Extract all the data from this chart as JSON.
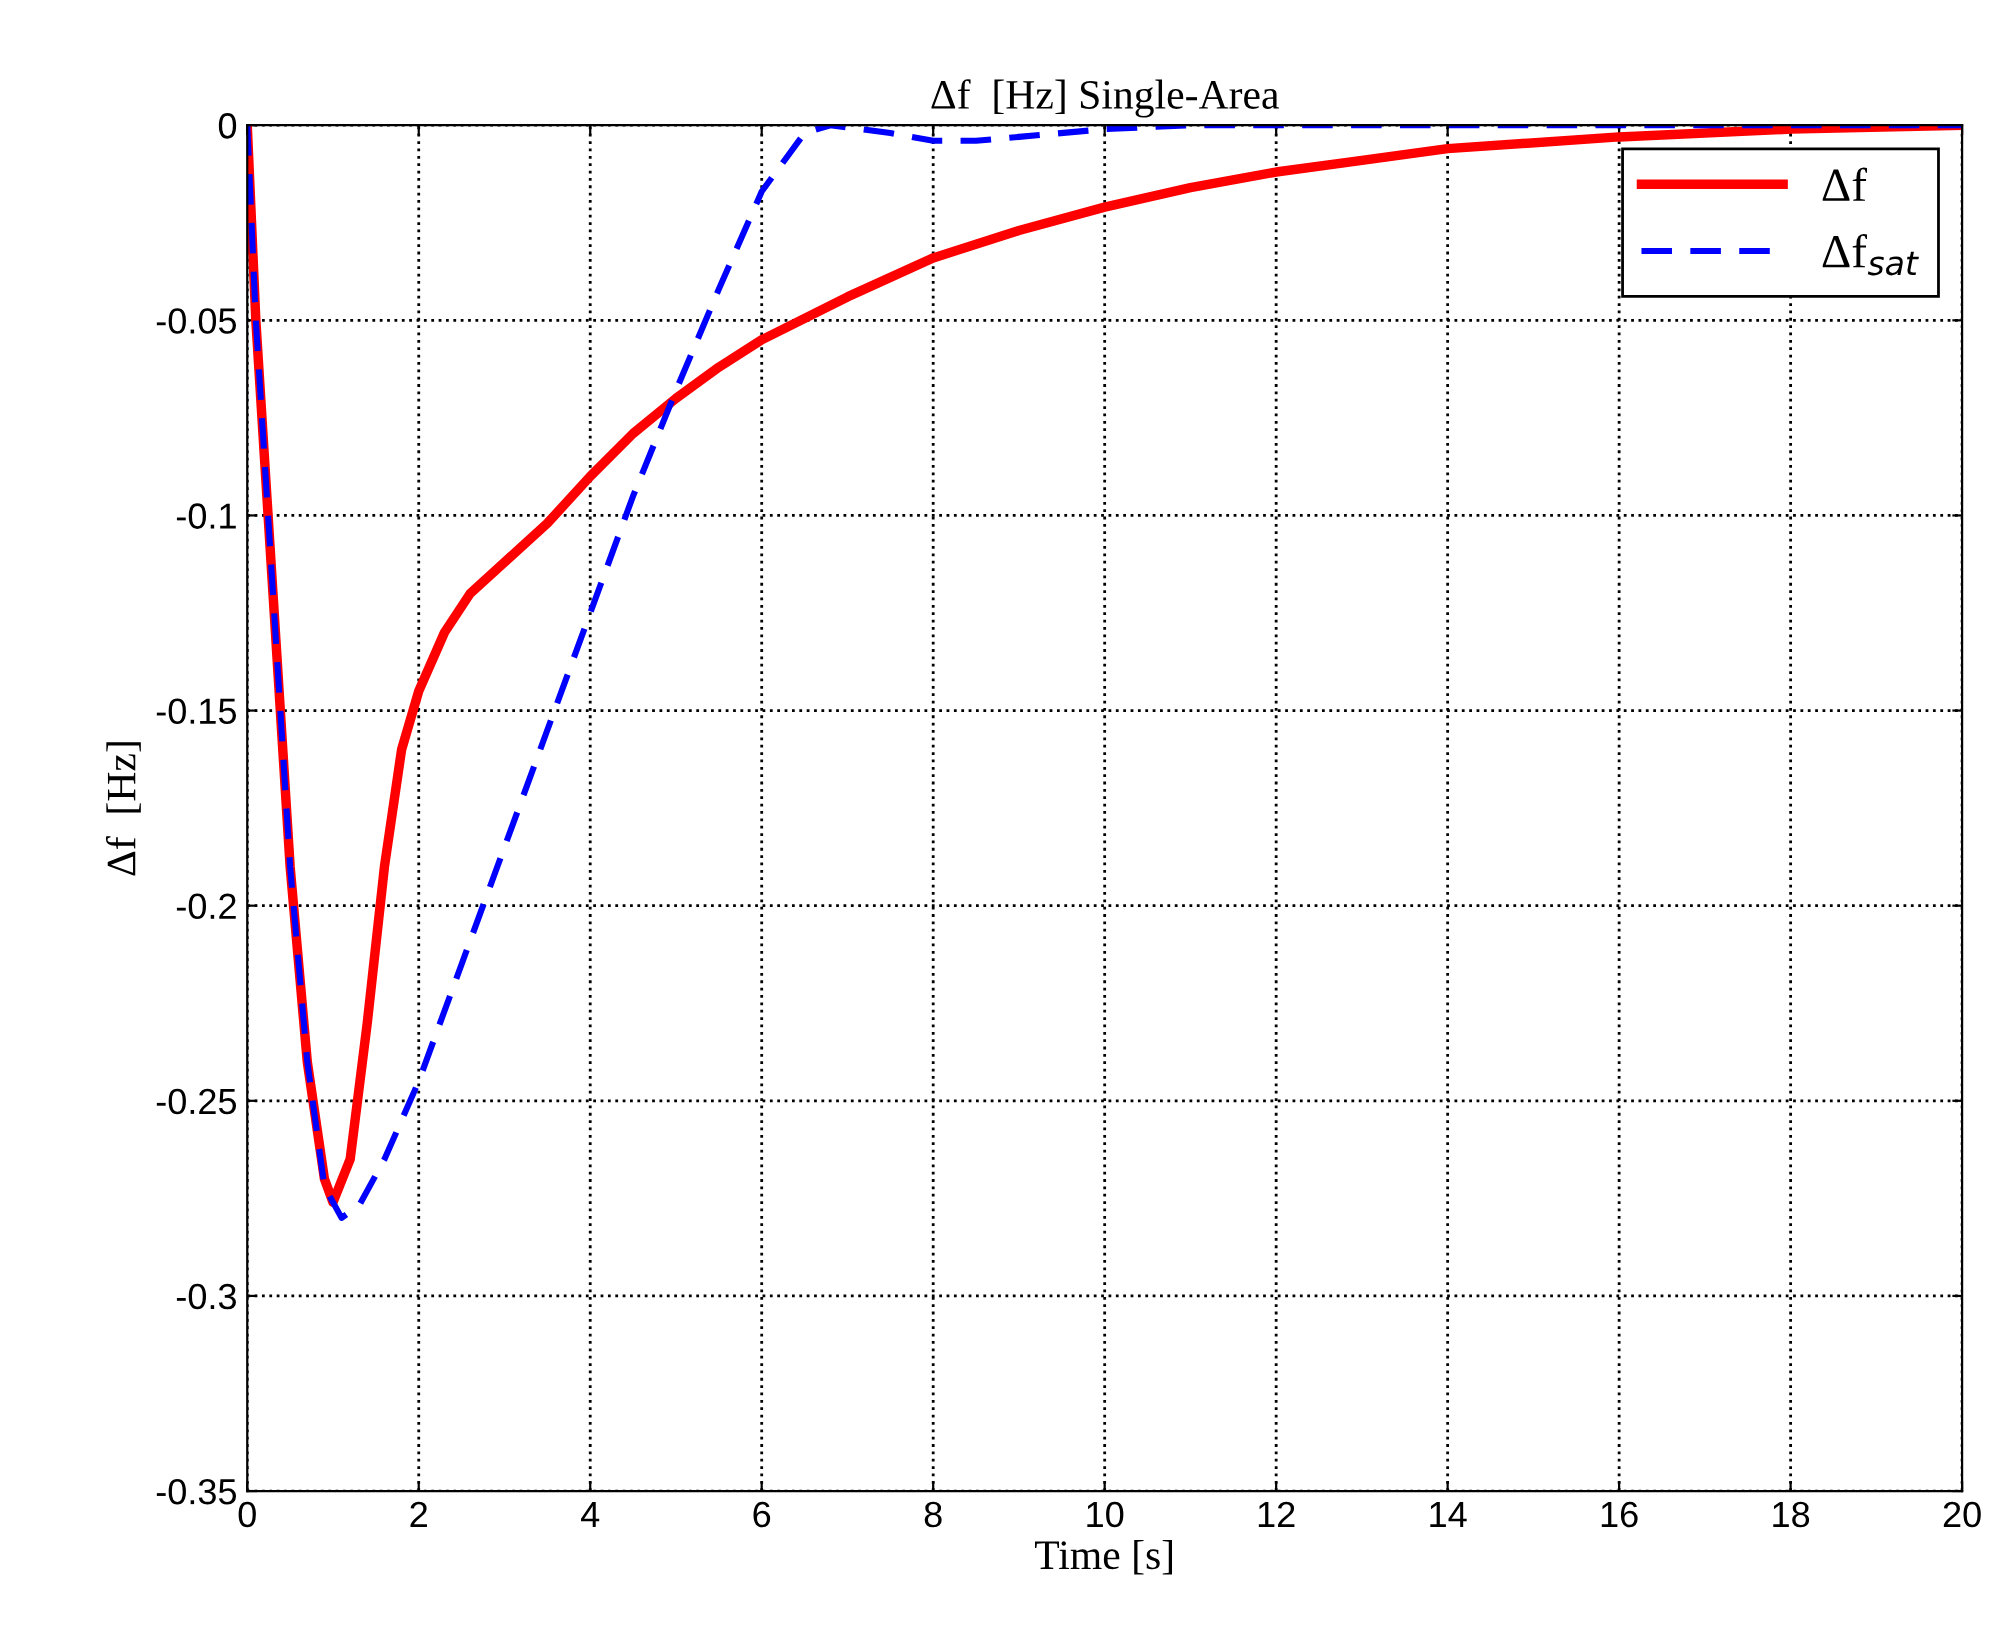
{
  "chart_data": {
    "type": "line",
    "title": "Δf  [Hz] Single-Area",
    "xlabel": "Time [s]",
    "ylabel": "Δf  [Hz]",
    "xlim": [
      0,
      20
    ],
    "ylim": [
      -0.35,
      0
    ],
    "xticks": [
      0,
      2,
      4,
      6,
      8,
      10,
      12,
      14,
      16,
      18,
      20
    ],
    "yticks": [
      -0.35,
      -0.3,
      -0.25,
      -0.2,
      -0.15,
      -0.1,
      -0.05,
      0
    ],
    "grid": true,
    "legend": "top right",
    "series": [
      {
        "name": "Δf",
        "color": "#ff0000",
        "line_style": "solid",
        "x": [
          0,
          0.1,
          0.3,
          0.5,
          0.7,
          0.9,
          1.0,
          1.2,
          1.4,
          1.6,
          1.8,
          2.0,
          2.3,
          2.6,
          3,
          3.5,
          4,
          4.5,
          5,
          5.5,
          6,
          7,
          8,
          9,
          10,
          11,
          12,
          13,
          14,
          16,
          18,
          20
        ],
        "values": [
          0,
          -0.05,
          -0.12,
          -0.19,
          -0.24,
          -0.27,
          -0.276,
          -0.265,
          -0.23,
          -0.19,
          -0.16,
          -0.145,
          -0.13,
          -0.12,
          -0.112,
          -0.102,
          -0.09,
          -0.079,
          -0.07,
          -0.062,
          -0.055,
          -0.044,
          -0.034,
          -0.027,
          -0.021,
          -0.016,
          -0.012,
          -0.009,
          -0.006,
          -0.003,
          -0.001,
          0
        ]
      },
      {
        "name": "Δf$_{sat}$",
        "color": "#0000ff",
        "line_style": "dashed",
        "x": [
          0,
          0.1,
          0.3,
          0.5,
          0.7,
          0.9,
          1.1,
          1.3,
          1.6,
          2,
          2.5,
          3,
          3.5,
          4,
          4.5,
          5,
          5.5,
          6,
          6.5,
          6.8,
          7.5,
          8,
          8.5,
          9,
          10,
          11,
          20
        ],
        "values": [
          0,
          -0.05,
          -0.12,
          -0.19,
          -0.24,
          -0.272,
          -0.28,
          -0.277,
          -0.265,
          -0.245,
          -0.215,
          -0.185,
          -0.155,
          -0.125,
          -0.095,
          -0.068,
          -0.042,
          -0.017,
          -0.002,
          0,
          -0.002,
          -0.004,
          -0.004,
          -0.003,
          -0.001,
          0,
          0
        ]
      }
    ]
  }
}
